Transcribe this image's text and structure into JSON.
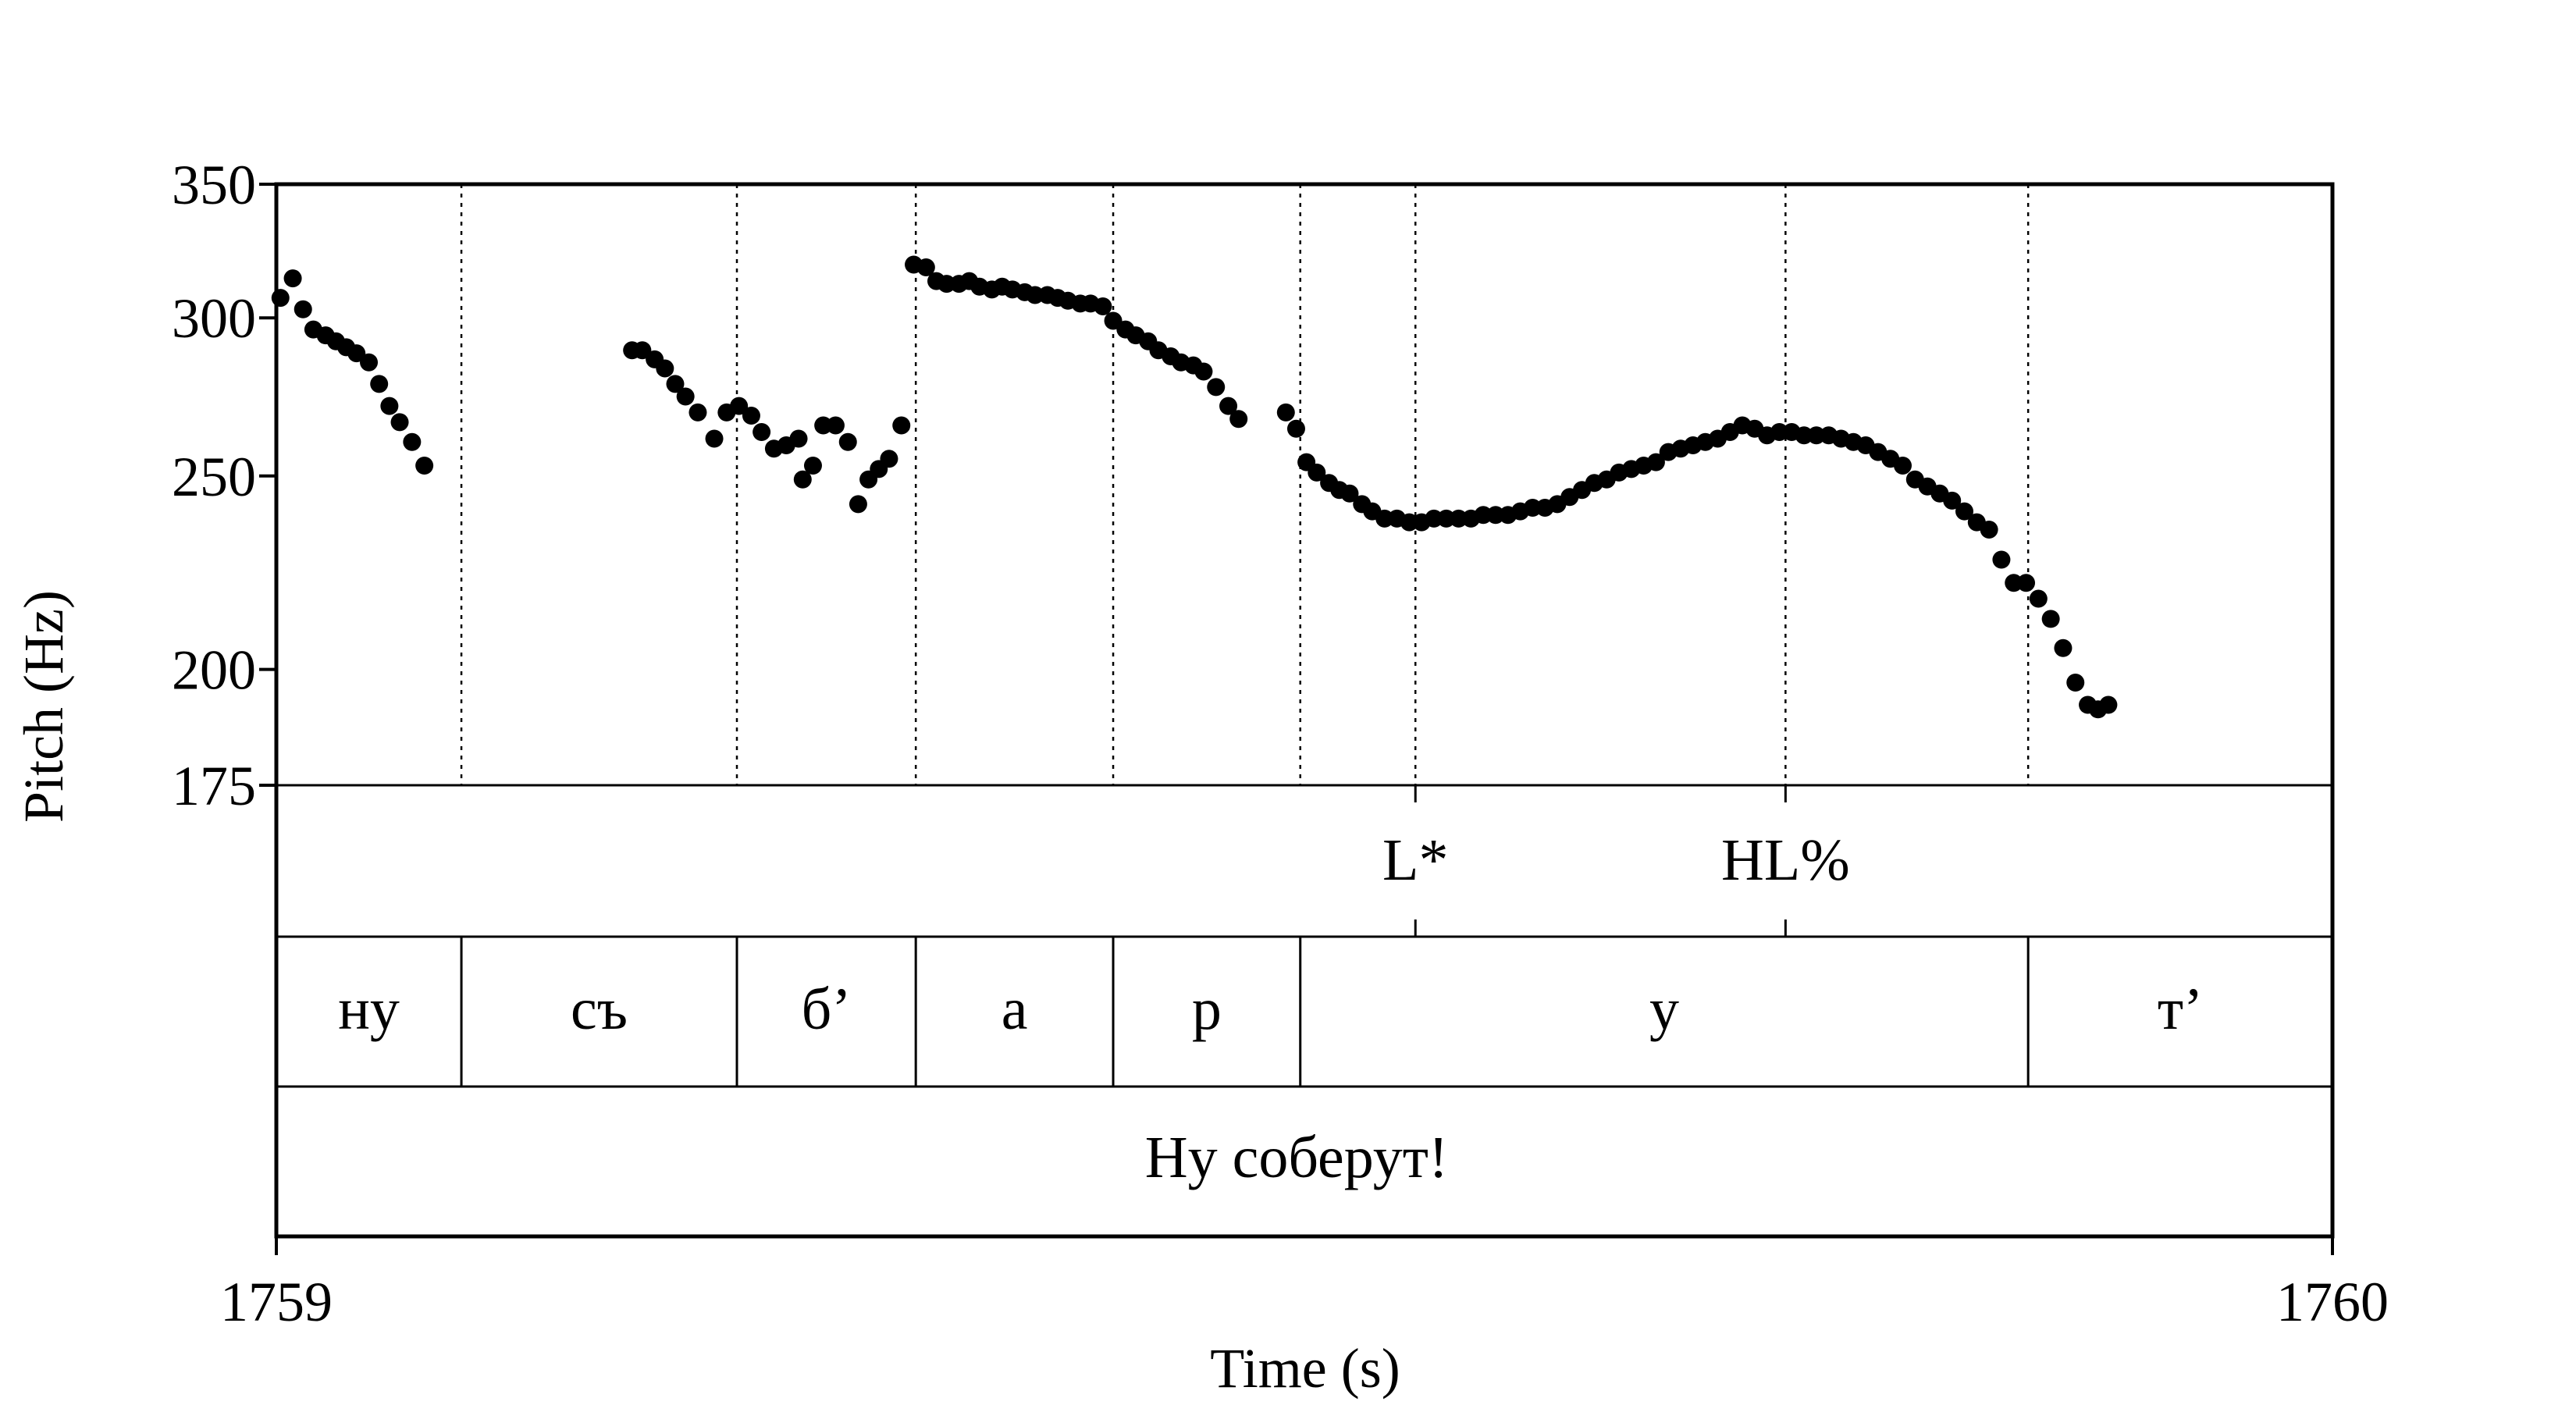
{
  "chart_data": {
    "type": "scatter",
    "xlabel": "Time (s)",
    "ylabel": "Pitch (Hz)",
    "xlim": [
      1759,
      1760
    ],
    "ylim": [
      175,
      350
    ],
    "y_scale": "log",
    "yticks": [
      175,
      200,
      250,
      300,
      350
    ],
    "xtick_labels": [
      "1759",
      "1760"
    ],
    "grid": "dotted vertical lines at segment boundaries",
    "series": [
      {
        "points": [
          [
            1759.002,
            307
          ],
          [
            1759.008,
            314
          ],
          [
            1759.013,
            303
          ],
          [
            1759.018,
            296
          ],
          [
            1759.024,
            294
          ],
          [
            1759.029,
            292
          ],
          [
            1759.034,
            290
          ],
          [
            1759.039,
            288
          ],
          [
            1759.045,
            285
          ],
          [
            1759.05,
            278
          ],
          [
            1759.055,
            271
          ],
          [
            1759.06,
            266
          ],
          [
            1759.066,
            260
          ],
          [
            1759.072,
            253
          ],
          [
            1759.173,
            289
          ],
          [
            1759.178,
            289
          ],
          [
            1759.184,
            286
          ],
          [
            1759.189,
            283
          ],
          [
            1759.194,
            278
          ],
          [
            1759.199,
            274
          ],
          [
            1759.205,
            269
          ],
          [
            1759.213,
            261
          ],
          [
            1759.219,
            269
          ],
          [
            1759.225,
            271
          ],
          [
            1759.231,
            268
          ],
          [
            1759.236,
            263
          ],
          [
            1759.242,
            258
          ],
          [
            1759.248,
            259
          ],
          [
            1759.254,
            261
          ],
          [
            1759.256,
            249
          ],
          [
            1759.261,
            253
          ],
          [
            1759.266,
            265
          ],
          [
            1759.272,
            265
          ],
          [
            1759.278,
            260
          ],
          [
            1759.283,
            242
          ],
          [
            1759.288,
            249
          ],
          [
            1759.293,
            252
          ],
          [
            1759.298,
            255
          ],
          [
            1759.304,
            265
          ],
          [
            1759.31,
            319
          ],
          [
            1759.316,
            318
          ],
          [
            1759.321,
            313
          ],
          [
            1759.326,
            312
          ],
          [
            1759.332,
            312
          ],
          [
            1759.337,
            313
          ],
          [
            1759.342,
            311
          ],
          [
            1759.348,
            310
          ],
          [
            1759.353,
            311
          ],
          [
            1759.358,
            310
          ],
          [
            1759.364,
            309
          ],
          [
            1759.369,
            308
          ],
          [
            1759.375,
            308
          ],
          [
            1759.38,
            307
          ],
          [
            1759.385,
            306
          ],
          [
            1759.391,
            305
          ],
          [
            1759.396,
            305
          ],
          [
            1759.402,
            304
          ],
          [
            1759.407,
            299
          ],
          [
            1759.413,
            296
          ],
          [
            1759.418,
            294
          ],
          [
            1759.424,
            292
          ],
          [
            1759.429,
            289
          ],
          [
            1759.435,
            287
          ],
          [
            1759.44,
            285
          ],
          [
            1759.446,
            284
          ],
          [
            1759.451,
            282
          ],
          [
            1759.457,
            277
          ],
          [
            1759.463,
            271
          ],
          [
            1759.468,
            267
          ],
          [
            1759.491,
            269
          ],
          [
            1759.496,
            264
          ],
          [
            1759.501,
            254
          ],
          [
            1759.506,
            251
          ],
          [
            1759.512,
            248
          ],
          [
            1759.517,
            246
          ],
          [
            1759.522,
            245
          ],
          [
            1759.528,
            242
          ],
          [
            1759.533,
            240
          ],
          [
            1759.539,
            238
          ],
          [
            1759.545,
            238
          ],
          [
            1759.551,
            237
          ],
          [
            1759.557,
            237
          ],
          [
            1759.563,
            238
          ],
          [
            1759.569,
            238
          ],
          [
            1759.575,
            238
          ],
          [
            1759.581,
            238
          ],
          [
            1759.587,
            239
          ],
          [
            1759.593,
            239
          ],
          [
            1759.599,
            239
          ],
          [
            1759.605,
            240
          ],
          [
            1759.611,
            241
          ],
          [
            1759.617,
            241
          ],
          [
            1759.623,
            242
          ],
          [
            1759.629,
            244
          ],
          [
            1759.635,
            246
          ],
          [
            1759.641,
            248
          ],
          [
            1759.647,
            249
          ],
          [
            1759.653,
            251
          ],
          [
            1759.659,
            252
          ],
          [
            1759.665,
            253
          ],
          [
            1759.671,
            254
          ],
          [
            1759.677,
            257
          ],
          [
            1759.683,
            258
          ],
          [
            1759.689,
            259
          ],
          [
            1759.695,
            260
          ],
          [
            1759.701,
            261
          ],
          [
            1759.707,
            263
          ],
          [
            1759.713,
            265
          ],
          [
            1759.719,
            264
          ],
          [
            1759.725,
            262
          ],
          [
            1759.731,
            263
          ],
          [
            1759.737,
            263
          ],
          [
            1759.743,
            262
          ],
          [
            1759.749,
            262
          ],
          [
            1759.755,
            262
          ],
          [
            1759.761,
            261
          ],
          [
            1759.767,
            260
          ],
          [
            1759.773,
            259
          ],
          [
            1759.779,
            257
          ],
          [
            1759.785,
            255
          ],
          [
            1759.791,
            253
          ],
          [
            1759.797,
            249
          ],
          [
            1759.803,
            247
          ],
          [
            1759.809,
            245
          ],
          [
            1759.815,
            243
          ],
          [
            1759.821,
            240
          ],
          [
            1759.827,
            237
          ],
          [
            1759.833,
            235
          ],
          [
            1759.839,
            227
          ],
          [
            1759.845,
            221
          ],
          [
            1759.851,
            221
          ],
          [
            1759.857,
            217
          ],
          [
            1759.863,
            212
          ],
          [
            1759.869,
            205
          ],
          [
            1759.875,
            197
          ],
          [
            1759.881,
            192
          ],
          [
            1759.886,
            191
          ],
          [
            1759.891,
            192
          ]
        ]
      }
    ],
    "tiers": {
      "tones": [
        {
          "label": "L*",
          "time": 1759.554
        },
        {
          "label": "HL%",
          "time": 1759.734
        }
      ],
      "segments": {
        "boundaries": [
          1759.0,
          1759.09,
          1759.224,
          1759.311,
          1759.407,
          1759.498,
          1759.852,
          1760.0
        ],
        "labels": [
          "ну",
          "съ",
          "б’",
          "а",
          "р",
          "у",
          "т’"
        ]
      },
      "utterance": "Ну соберут!"
    }
  }
}
